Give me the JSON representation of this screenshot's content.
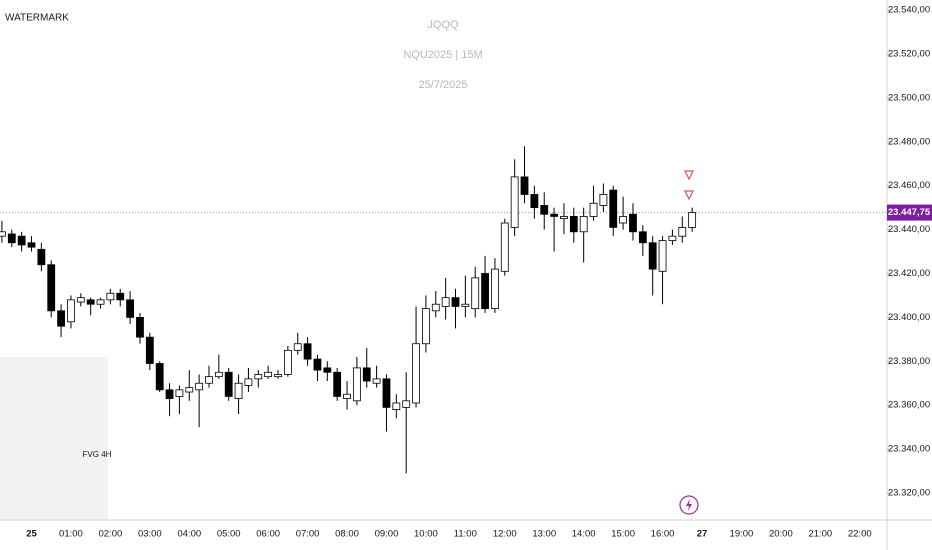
{
  "chart_data": {
    "type": "candlestick",
    "watermark": "WATERMARK",
    "title": "JQQQ",
    "subtitle": "NQU2025 | 15M",
    "date": "25/7/2025",
    "categories": [
      null,
      null,
      null,
      "25",
      null,
      null,
      null,
      "01:00",
      null,
      null,
      null,
      "02:00",
      null,
      null,
      null,
      "03:00",
      null,
      null,
      null,
      "04:00",
      null,
      null,
      null,
      "05:00",
      null,
      null,
      null,
      "06:00",
      null,
      null,
      null,
      "07:00",
      null,
      null,
      null,
      "08:00",
      null,
      null,
      null,
      "09:00",
      null,
      null,
      null,
      "10:00",
      null,
      null,
      null,
      "11:00",
      null,
      null,
      null,
      "12:00",
      null,
      null,
      null,
      "13:00",
      null,
      null,
      null,
      "14:00",
      null,
      null,
      null,
      "15:00",
      null,
      null,
      null,
      "16:00",
      null,
      null,
      null,
      "27",
      null,
      null,
      null,
      "19:00",
      null,
      null,
      null,
      "20:00",
      null,
      null,
      null,
      "21:00",
      null,
      null,
      null,
      "22:00",
      null
    ],
    "open": [
      23437,
      23438,
      23437,
      23434,
      23431,
      23424,
      23403,
      23398,
      23407,
      23408,
      23406,
      23408,
      23411,
      23408,
      23400,
      23391,
      23379,
      23367,
      23364,
      23366,
      23367,
      23370,
      23373,
      23375,
      23363,
      23369,
      23372,
      23373,
      23373,
      23374,
      23385,
      23388,
      23381,
      23377,
      23375,
      23363,
      23362,
      23377,
      23370,
      23372,
      23358,
      23359,
      23361,
      23388,
      23403,
      23405,
      23409,
      23405,
      23404,
      23420,
      23404,
      23421,
      23441,
      23464,
      23456,
      23451,
      23447,
      23445,
      23446,
      23439,
      23446,
      23451,
      23458,
      23443,
      23447,
      23439,
      23434,
      23421,
      23435,
      23437,
      23441,
      null,
      null,
      null,
      null,
      null,
      null,
      null,
      null,
      null,
      null,
      null,
      null,
      null,
      null,
      null,
      null,
      null,
      null
    ],
    "high": [
      23444,
      23440,
      23439,
      23437,
      23434,
      23426,
      23406,
      23410,
      23411,
      23409,
      23409,
      23413,
      23413,
      23412,
      23402,
      23393,
      23380,
      23370,
      23369,
      23376,
      23374,
      23378,
      23383,
      23377,
      23374,
      23377,
      23376,
      23378,
      23376,
      23387,
      23393,
      23391,
      23383,
      23380,
      23377,
      23371,
      23382,
      23386,
      23378,
      23374,
      23365,
      23375,
      23405,
      23410,
      23412,
      23418,
      23413,
      23419,
      23423,
      23428,
      23427,
      23445,
      23472,
      23478,
      23460,
      23457,
      23450,
      23452,
      23450,
      23450,
      23460,
      23461,
      23460,
      23455,
      23452,
      23442,
      23437,
      23437,
      23440,
      23446,
      23450,
      null,
      null,
      null,
      null,
      null,
      null,
      null,
      null,
      null,
      null,
      null,
      null,
      null,
      null,
      null,
      null,
      null,
      null
    ],
    "low": [
      23434,
      23432,
      23430,
      23430,
      23421,
      23400,
      23391,
      23395,
      23405,
      23401,
      23404,
      23406,
      23405,
      23397,
      23388,
      23376,
      23366,
      23355,
      23356,
      23362,
      23350,
      23368,
      23372,
      23362,
      23356,
      23366,
      23368,
      23372,
      23372,
      23373,
      23383,
      23378,
      23371,
      23371,
      23362,
      23358,
      23360,
      23368,
      23368,
      23348,
      23354,
      23329,
      23359,
      23384,
      23400,
      23399,
      23395,
      23400,
      23400,
      23402,
      23402,
      23419,
      23437,
      23452,
      23445,
      23440,
      23430,
      23438,
      23434,
      23425,
      23444,
      23448,
      23437,
      23440,
      23435,
      23428,
      23410,
      23406,
      23433,
      23434,
      23439,
      null,
      null,
      null,
      null,
      null,
      null,
      null,
      null,
      null,
      null,
      null,
      null,
      null,
      null,
      null,
      null,
      null,
      null
    ],
    "close": [
      23439,
      23434,
      23433,
      23432,
      23424,
      23403,
      23396,
      23408,
      23409,
      23406,
      23408,
      23411,
      23408,
      23400,
      23391,
      23379,
      23367,
      23363,
      23367,
      23368,
      23370,
      23373,
      23375,
      23364,
      23370,
      23372,
      23374,
      23375,
      23374,
      23385,
      23388,
      23381,
      23376,
      23375,
      23364,
      23365,
      23377,
      23371,
      23372,
      23359,
      23361,
      23362,
      23388,
      23404,
      23406,
      23409,
      23405,
      23406,
      23418,
      23404,
      23422,
      23443,
      23464,
      23456,
      23450,
      23447,
      23446,
      23446,
      23439,
      23446,
      23452,
      23456,
      23441,
      23446,
      23439,
      23434,
      23422,
      23435,
      23437,
      23441,
      23447.75,
      null,
      null,
      null,
      null,
      null,
      null,
      null,
      null,
      null,
      null,
      null,
      null,
      null,
      null,
      null,
      null,
      null,
      null
    ],
    "up_color": "#ffffff",
    "down_color": "#000000",
    "ylim": [
      23307.7,
      23544.6
    ],
    "yticks": [
      {
        "value": 23320,
        "label": "23.320,00"
      },
      {
        "value": 23340,
        "label": "23.340,00"
      },
      {
        "value": 23360,
        "label": "23.360,00"
      },
      {
        "value": 23380,
        "label": "23.380,00"
      },
      {
        "value": 23400,
        "label": "23.400,00"
      },
      {
        "value": 23420,
        "label": "23.420,00"
      },
      {
        "value": 23440,
        "label": "23.440,00"
      },
      {
        "value": 23460,
        "label": "23.460,00"
      },
      {
        "value": 23480,
        "label": "23.480,00"
      },
      {
        "value": 23500,
        "label": "23.500,00"
      },
      {
        "value": 23520,
        "label": "23.520,00"
      },
      {
        "value": 23540,
        "label": "23.540,00"
      }
    ],
    "last_price": {
      "value": 23447.75,
      "label": "23.447,75"
    },
    "last_price_color": "#7b1fa2",
    "zones": [
      {
        "label": "FVG 4H",
        "high": 23382,
        "low": 23308
      }
    ]
  }
}
